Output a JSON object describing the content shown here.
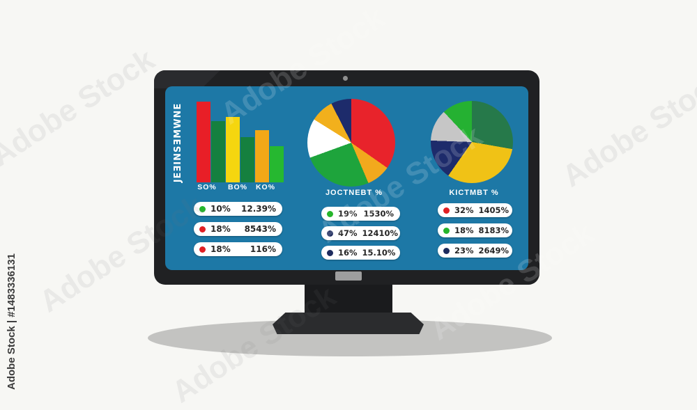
{
  "background_color": "#f7f7f4",
  "watermark": {
    "stock_id": "Adobe Stock | #1483336131",
    "diagonal_text": "Adobe Stock"
  },
  "monitor": {
    "bezel_color": "#202123",
    "screen_color": "#1d78a6",
    "shadow_color": "#c3c3c1"
  },
  "chart_data": [
    {
      "type": "bar",
      "title": "",
      "side_label": "JEƎINSƎMWNE",
      "categories": [
        "SO%",
        "BO%",
        "KO%"
      ],
      "values": [
        116,
        88,
        94,
        65,
        75,
        52
      ],
      "value_unit": "relative-bar-height-px",
      "colors": [
        "#e81f27",
        "#15803f",
        "#f5d60f",
        "#15803f",
        "#f3a817",
        "#26b830"
      ],
      "xlabel": "",
      "ylabel": "",
      "grid": false
    },
    {
      "type": "pie",
      "title": "JOCTNEBT %",
      "slices": [
        {
          "label": "red",
          "deg": 125,
          "pct": 35,
          "color": "#e8232b"
        },
        {
          "label": "orange",
          "deg": 32,
          "pct": 9,
          "color": "#f2a91d"
        },
        {
          "label": "green",
          "deg": 93,
          "pct": 26,
          "color": "#1ea43c"
        },
        {
          "label": "white",
          "deg": 52,
          "pct": 14,
          "color": "#ffffff"
        },
        {
          "label": "gold",
          "deg": 31,
          "pct": 9,
          "color": "#f2b01c"
        },
        {
          "label": "navy",
          "deg": 27,
          "pct": 7,
          "color": "#1d2b6b"
        }
      ]
    },
    {
      "type": "pie",
      "title": "KICTMBT %",
      "slices": [
        {
          "label": "dark-green",
          "deg": 100,
          "pct": 28,
          "color": "#26794a"
        },
        {
          "label": "gold",
          "deg": 115,
          "pct": 32,
          "color": "#f0c216"
        },
        {
          "label": "navy",
          "deg": 57,
          "pct": 16,
          "color": "#1d2b6b"
        },
        {
          "label": "gray",
          "deg": 45,
          "pct": 12,
          "color": "#c6c6c6"
        },
        {
          "label": "green",
          "deg": 43,
          "pct": 12,
          "color": "#25b132"
        }
      ]
    }
  ],
  "legends": {
    "left": {
      "rows": [
        {
          "dot_color": "#26b52b",
          "pct": "10%",
          "value": "12.39%"
        },
        {
          "dot_color": "#e02024",
          "pct": "18%",
          "value": "8543%"
        },
        {
          "dot_color": "#e02024",
          "pct": "18%",
          "value": "116%"
        }
      ]
    },
    "middle": {
      "rows": [
        {
          "dot_color": "#26b52b",
          "pct": "19%",
          "value": "1530%"
        },
        {
          "dot_color": "#1d2b5e",
          "pct": "47%",
          "value": "12410%"
        },
        {
          "dot_color": "#1d2b5e",
          "pct": "16%",
          "value": "15.10%"
        }
      ]
    },
    "right": {
      "rows": [
        {
          "dot_color": "#e02024",
          "pct": "32%",
          "value": "1405%"
        },
        {
          "dot_color": "#26b52b",
          "pct": "18%",
          "value": "8183%"
        },
        {
          "dot_color": "#1d2b5e",
          "pct": "23%",
          "value": "2649%"
        }
      ]
    }
  }
}
